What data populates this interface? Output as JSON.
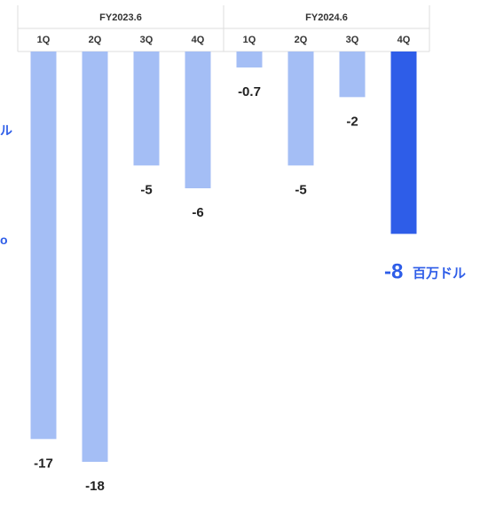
{
  "chart_data": {
    "type": "bar",
    "fiscal_groups": [
      {
        "label": "FY2023.6",
        "categories": [
          "1Q",
          "2Q",
          "3Q",
          "4Q"
        ]
      },
      {
        "label": "FY2024.6",
        "categories": [
          "1Q",
          "2Q",
          "3Q",
          "4Q"
        ]
      }
    ],
    "categories": [
      "1Q",
      "2Q",
      "3Q",
      "4Q",
      "1Q",
      "2Q",
      "3Q",
      "4Q"
    ],
    "values": [
      -17,
      -18,
      -5,
      -6,
      -0.7,
      -5,
      -2,
      -8
    ],
    "data_labels": [
      "-17",
      "-18",
      "-5",
      "-6",
      "-0.7",
      "-5",
      "-2",
      ""
    ],
    "highlight_index": 7,
    "ylim": [
      -18,
      0
    ],
    "colors": {
      "bar": "#a4bef5",
      "highlight": "#2e5de8",
      "annotation": "#2e5de8",
      "header_rule": "#dddddd"
    },
    "annotation": {
      "value": "-8",
      "unit": "百万ドル"
    },
    "edge_fragments": [
      "ル",
      "o"
    ]
  }
}
